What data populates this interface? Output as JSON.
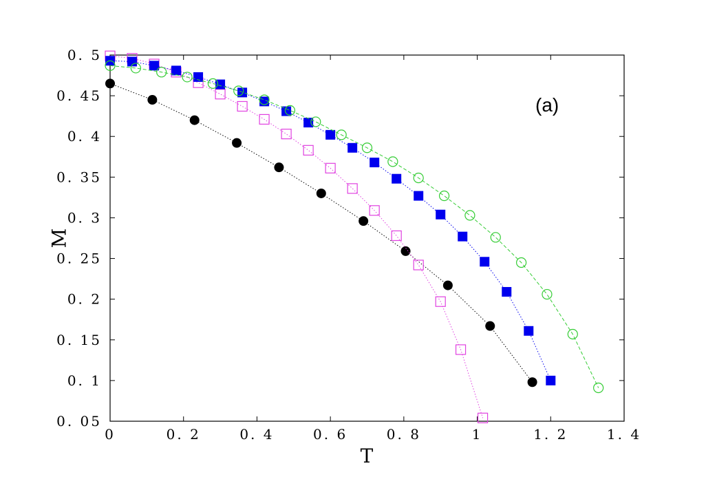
{
  "chart_data": {
    "type": "line",
    "xlabel": "T",
    "ylabel": "M",
    "annotation": "(a)",
    "xlim": [
      0,
      1.4
    ],
    "ylim": [
      0.05,
      0.5
    ],
    "x_ticks": [
      "0",
      "0. 2",
      "0. 4",
      "0. 6",
      "0. 8",
      "1",
      "1. 2",
      "1. 4"
    ],
    "x_tick_values": [
      0,
      0.2,
      0.4,
      0.6,
      0.8,
      1.0,
      1.2,
      1.4
    ],
    "y_ticks": [
      "0. 05",
      "0. 1",
      "0. 15",
      "0. 2",
      "0. 25",
      "0. 3",
      "0. 35",
      "0. 4",
      "0. 45",
      "0. 5"
    ],
    "y_tick_values": [
      0.05,
      0.1,
      0.15,
      0.2,
      0.25,
      0.3,
      0.35,
      0.4,
      0.45,
      0.5
    ],
    "grid": false,
    "series": [
      {
        "marker": "filled-circle",
        "color": "#000000",
        "line_style": "dotted",
        "x": [
          0,
          0.115,
          0.23,
          0.345,
          0.46,
          0.575,
          0.69,
          0.805,
          0.92,
          1.035,
          1.15
        ],
        "y": [
          0.465,
          0.445,
          0.42,
          0.392,
          0.362,
          0.33,
          0.296,
          0.259,
          0.217,
          0.167,
          0.098
        ]
      },
      {
        "marker": "open-square",
        "color": "#e040e0",
        "line_style": "dotted",
        "x": [
          0,
          0.06,
          0.12,
          0.18,
          0.24,
          0.3,
          0.36,
          0.42,
          0.48,
          0.54,
          0.6,
          0.66,
          0.72,
          0.78,
          0.84,
          0.9,
          0.955,
          1.015
        ],
        "y": [
          0.499,
          0.496,
          0.489,
          0.479,
          0.466,
          0.452,
          0.437,
          0.421,
          0.403,
          0.383,
          0.361,
          0.336,
          0.309,
          0.278,
          0.242,
          0.197,
          0.138,
          0.054
        ]
      },
      {
        "marker": "filled-square",
        "color": "#0000ee",
        "line_style": "dotted",
        "x": [
          0,
          0.06,
          0.12,
          0.18,
          0.24,
          0.3,
          0.36,
          0.42,
          0.48,
          0.54,
          0.6,
          0.66,
          0.72,
          0.78,
          0.84,
          0.9,
          0.96,
          1.02,
          1.08,
          1.14,
          1.2
        ],
        "y": [
          0.493,
          0.492,
          0.487,
          0.481,
          0.473,
          0.464,
          0.454,
          0.443,
          0.431,
          0.417,
          0.402,
          0.386,
          0.368,
          0.348,
          0.327,
          0.304,
          0.277,
          0.246,
          0.209,
          0.161,
          0.1
        ]
      },
      {
        "marker": "open-circle",
        "color": "#33cc33",
        "line_style": "dashed",
        "x": [
          0,
          0.07,
          0.14,
          0.21,
          0.28,
          0.35,
          0.42,
          0.49,
          0.56,
          0.63,
          0.7,
          0.77,
          0.84,
          0.91,
          0.98,
          1.05,
          1.12,
          1.19,
          1.26,
          1.33
        ],
        "y": [
          0.487,
          0.484,
          0.479,
          0.473,
          0.465,
          0.456,
          0.445,
          0.432,
          0.418,
          0.402,
          0.386,
          0.369,
          0.349,
          0.327,
          0.303,
          0.276,
          0.245,
          0.206,
          0.157,
          0.091
        ]
      }
    ]
  }
}
